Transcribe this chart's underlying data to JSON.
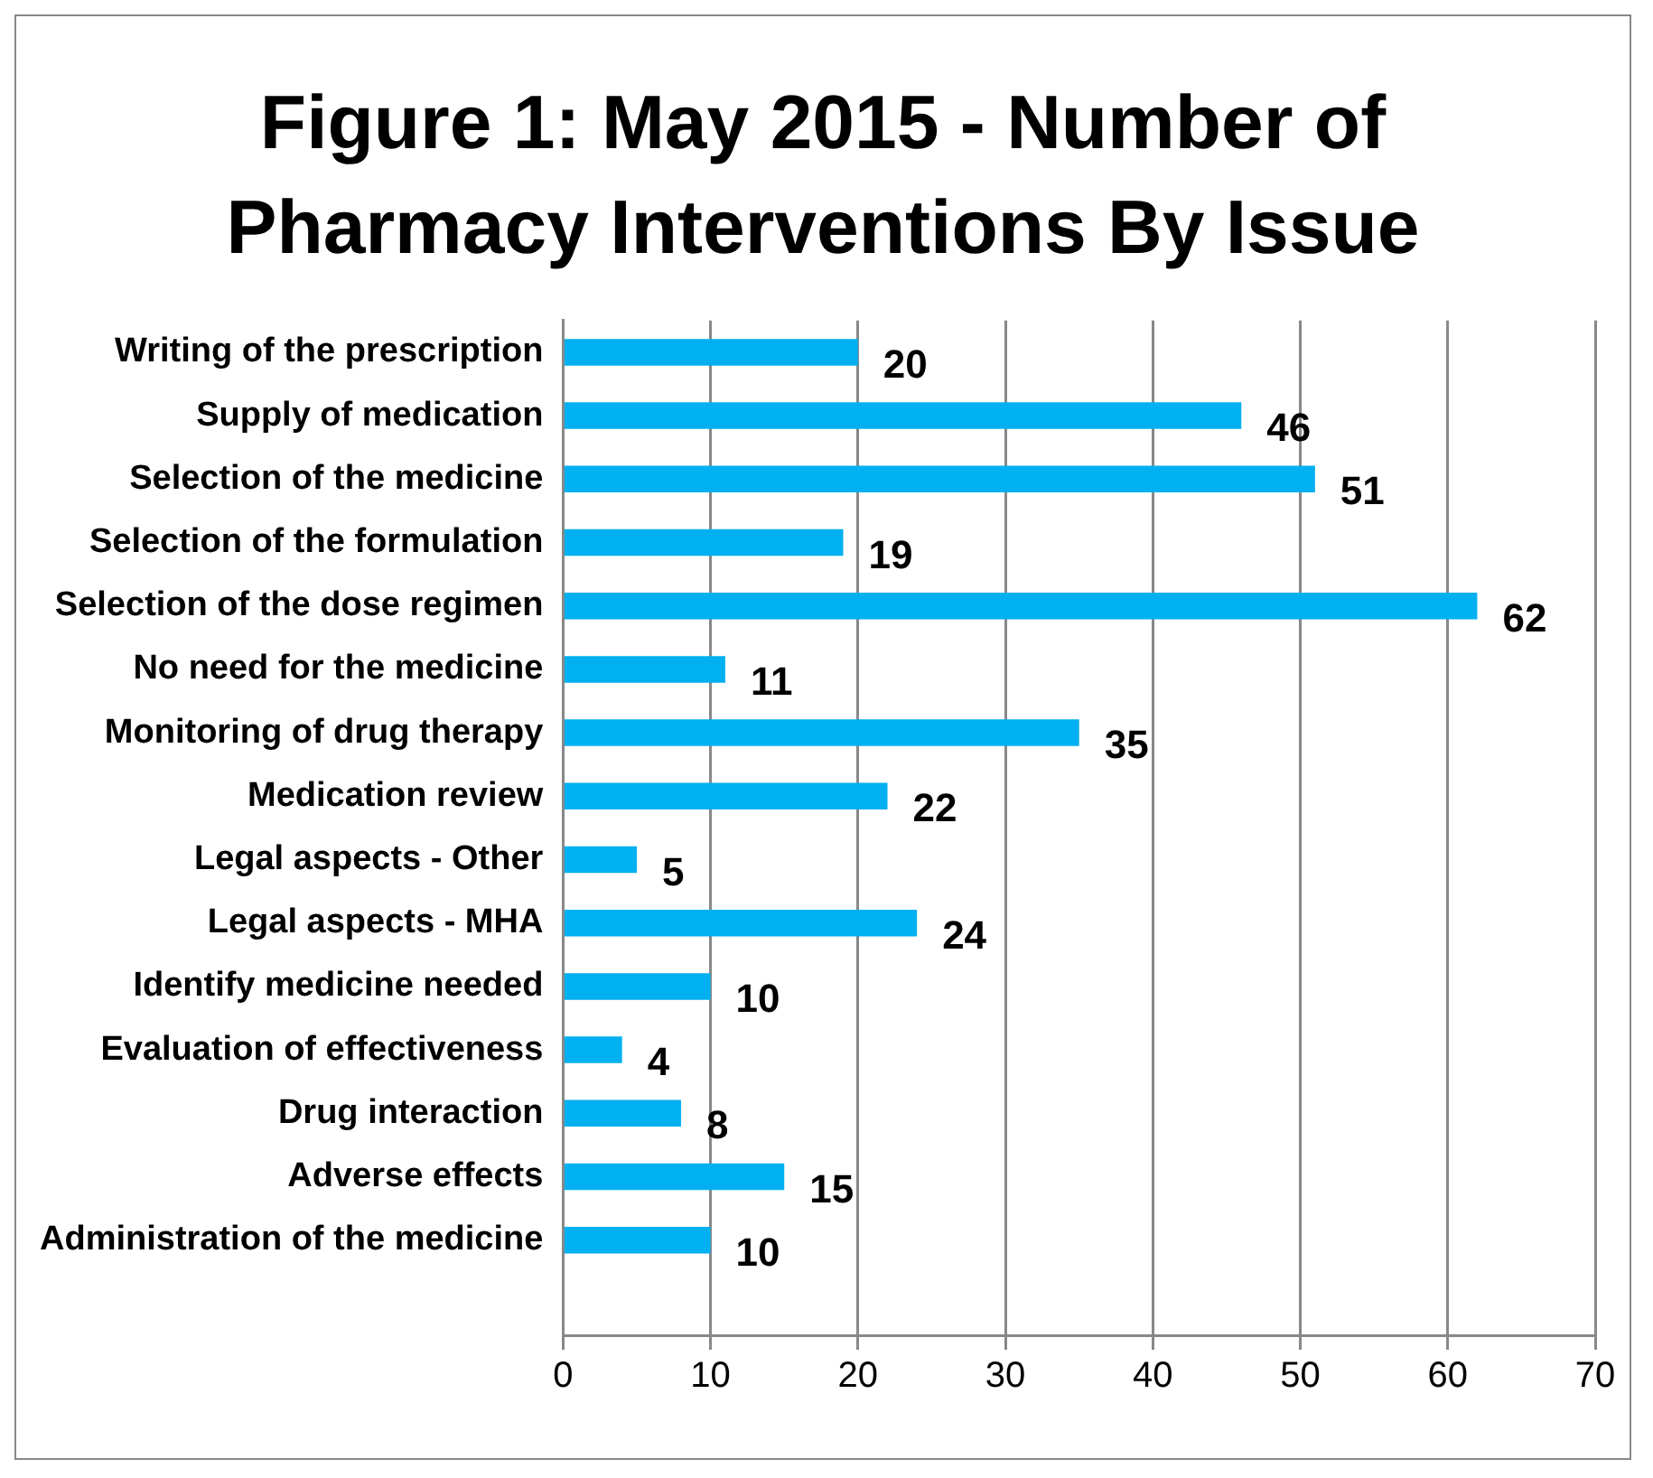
{
  "chart_data": {
    "type": "bar",
    "orientation": "horizontal",
    "title": "Figure 1: May 2015 - Number of Pharmacy Interventions By Issue",
    "categories": [
      "Writing of the prescription",
      "Supply of medication",
      "Selection of the medicine",
      "Selection of the formulation",
      "Selection of the dose regimen",
      "No need for the medicine",
      "Monitoring of drug therapy",
      "Medication review",
      "Legal aspects - Other",
      "Legal aspects - MHA",
      "Identify medicine needed",
      "Evaluation of effectiveness",
      "Drug interaction",
      "Adverse effects",
      "Administration of the medicine",
      null
    ],
    "values": [
      20,
      46,
      51,
      19,
      62,
      11,
      35,
      22,
      5,
      24,
      10,
      4,
      8,
      15,
      10,
      null
    ],
    "color": "#00b0f0",
    "xlim": [
      0,
      70
    ],
    "xticks": [
      0,
      10,
      20,
      30,
      40,
      50,
      60,
      70
    ],
    "grid": "x",
    "data_labels": true,
    "legend": false
  }
}
